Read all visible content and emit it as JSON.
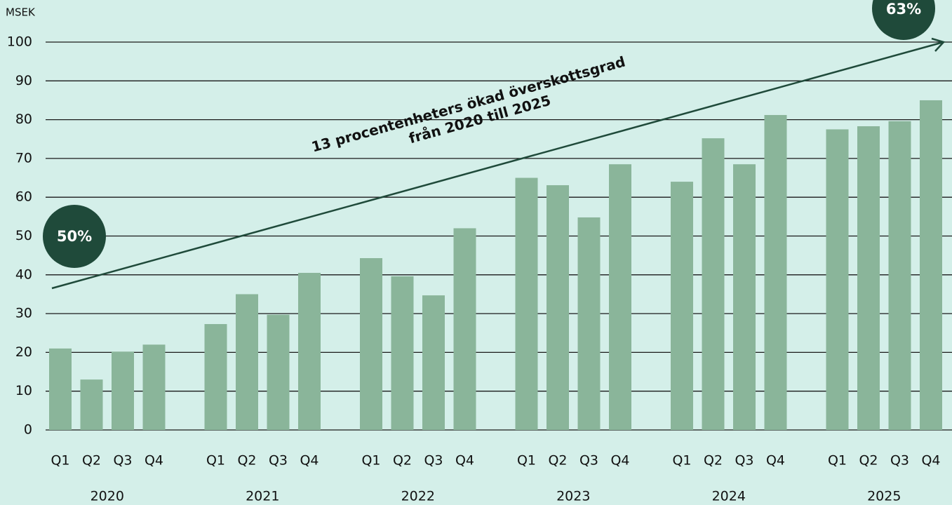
{
  "chart_data": {
    "type": "bar",
    "ylabel": "MSEK",
    "categories": [
      "Q1",
      "Q2",
      "Q3",
      "Q4",
      "Q1",
      "Q2",
      "Q3",
      "Q4",
      "Q1",
      "Q2",
      "Q3",
      "Q4",
      "Q1",
      "Q2",
      "Q3",
      "Q4",
      "Q1",
      "Q2",
      "Q3",
      "Q4",
      "Q1",
      "Q2",
      "Q3",
      "Q4"
    ],
    "groups": [
      "2020",
      "2021",
      "2022",
      "2023",
      "2024",
      "2025"
    ],
    "values": [
      21,
      13,
      20.2,
      22,
      27.3,
      35,
      29.7,
      40.5,
      44.3,
      39.6,
      34.7,
      52,
      65,
      63.1,
      54.8,
      68.5,
      64,
      75.2,
      68.5,
      81.2,
      77.5,
      78.3,
      79.6,
      85
    ],
    "color": "#8ab59a",
    "ylim": [
      0,
      100
    ],
    "yticks": [
      0,
      10,
      20,
      30,
      40,
      50,
      60,
      70,
      80,
      90,
      100
    ],
    "grid": true,
    "annotations": [
      "13 procentenheters ökad överskottsgrad",
      "från 2020 till 2025"
    ],
    "badges": [
      "50%",
      "63%"
    ]
  }
}
